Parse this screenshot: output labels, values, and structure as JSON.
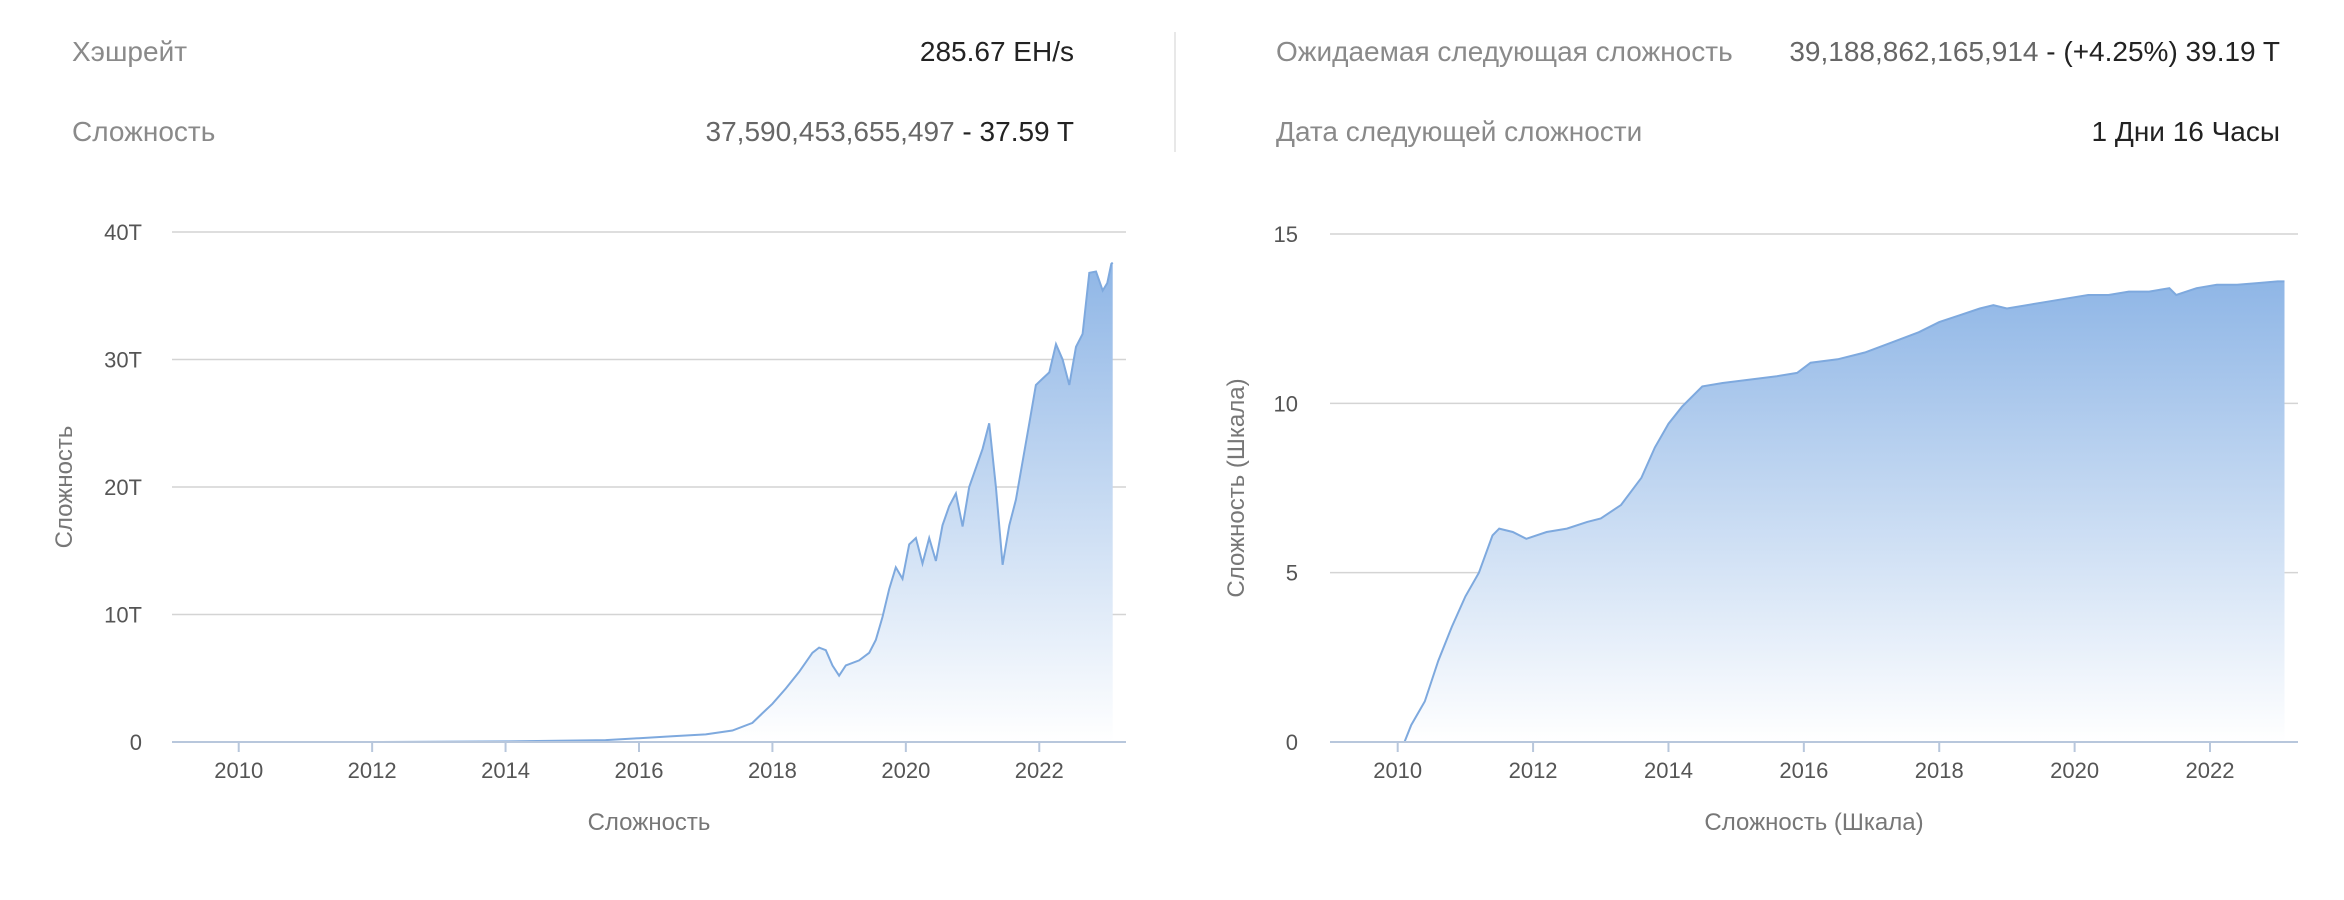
{
  "stats": {
    "hashrate_label": "Хэшрейт",
    "hashrate_value": "285.67 EH/s",
    "difficulty_label": "Сложность",
    "difficulty_full": "37,590,453,655,497",
    "difficulty_sep": " - ",
    "difficulty_short": "37.59 T",
    "next_label": "Ожидаемая следующая сложность",
    "next_full": "39,188,862,165,914",
    "next_rest": " - (+4.25%) 39.19 T",
    "next_date_label": "Дата следующей сложности",
    "next_date_value": "1 Дни 16 Часы"
  },
  "colors": {
    "fill_top": "#8fb6e6",
    "fill_bottom": "#ffffff",
    "line": "#7ea9de",
    "grid": "#d4d4d4"
  },
  "chart_data": [
    {
      "type": "area",
      "xlabel": "",
      "ylabel": "Сложность",
      "axis_caption": "Сложность",
      "xlim": [
        2009.0,
        2023.3
      ],
      "ylim": [
        0,
        40
      ],
      "y_unit": "T",
      "y_ticks": [
        "0",
        "10T",
        "20T",
        "30T",
        "40T"
      ],
      "y_tick_values": [
        0,
        10,
        20,
        30,
        40
      ],
      "x_ticks": [
        "2010",
        "2012",
        "2014",
        "2016",
        "2018",
        "2020",
        "2022"
      ],
      "x_tick_values": [
        2010,
        2012,
        2014,
        2016,
        2018,
        2020,
        2022
      ],
      "grid": true,
      "x": [
        2009.0,
        2012.0,
        2014.0,
        2015.5,
        2016.0,
        2016.5,
        2017.0,
        2017.4,
        2017.7,
        2017.9,
        2018.0,
        2018.2,
        2018.4,
        2018.6,
        2018.7,
        2018.8,
        2018.9,
        2019.0,
        2019.1,
        2019.3,
        2019.45,
        2019.55,
        2019.65,
        2019.75,
        2019.85,
        2019.95,
        2020.05,
        2020.15,
        2020.25,
        2020.35,
        2020.45,
        2020.55,
        2020.65,
        2020.75,
        2020.85,
        2020.95,
        2021.05,
        2021.15,
        2021.25,
        2021.35,
        2021.45,
        2021.55,
        2021.65,
        2021.75,
        2021.85,
        2021.95,
        2022.05,
        2022.15,
        2022.25,
        2022.35,
        2022.45,
        2022.55,
        2022.65,
        2022.75,
        2022.85,
        2022.95,
        2023.02,
        2023.08,
        2023.1
      ],
      "y": [
        0,
        0,
        0.05,
        0.15,
        0.3,
        0.45,
        0.6,
        0.9,
        1.5,
        2.5,
        3.0,
        4.2,
        5.5,
        7.0,
        7.4,
        7.2,
        6.0,
        5.2,
        6.0,
        6.4,
        7.0,
        8.0,
        9.8,
        12.0,
        13.7,
        12.8,
        15.5,
        16.0,
        14.0,
        16.0,
        14.2,
        17.0,
        18.5,
        19.5,
        16.9,
        20.0,
        21.5,
        23.0,
        25.0,
        20.0,
        13.9,
        17.0,
        19.0,
        22.0,
        25.0,
        28.0,
        28.5,
        29.0,
        31.2,
        30.0,
        28.0,
        31.0,
        32.0,
        36.8,
        36.9,
        35.4,
        36.0,
        37.5,
        37.6
      ]
    },
    {
      "type": "area",
      "xlabel": "",
      "ylabel": "Сложность (Шкала)",
      "axis_caption": "Сложность (Шкала)",
      "xlim": [
        2009.0,
        2023.3
      ],
      "ylim": [
        0,
        15
      ],
      "y_ticks": [
        "0",
        "5",
        "10",
        "15"
      ],
      "y_tick_values": [
        0,
        5,
        10,
        15
      ],
      "x_ticks": [
        "2010",
        "2012",
        "2014",
        "2016",
        "2018",
        "2020",
        "2022"
      ],
      "x_tick_values": [
        2010,
        2012,
        2014,
        2016,
        2018,
        2020,
        2022
      ],
      "grid": true,
      "x": [
        2009.0,
        2010.1,
        2010.2,
        2010.4,
        2010.6,
        2010.8,
        2011.0,
        2011.2,
        2011.4,
        2011.5,
        2011.7,
        2011.9,
        2012.2,
        2012.5,
        2012.8,
        2013.0,
        2013.3,
        2013.6,
        2013.8,
        2014.0,
        2014.2,
        2014.5,
        2014.8,
        2015.2,
        2015.6,
        2015.9,
        2016.1,
        2016.5,
        2016.9,
        2017.3,
        2017.7,
        2018.0,
        2018.3,
        2018.6,
        2018.8,
        2019.0,
        2019.3,
        2019.6,
        2019.9,
        2020.2,
        2020.5,
        2020.8,
        2021.1,
        2021.4,
        2021.5,
        2021.8,
        2022.1,
        2022.4,
        2022.7,
        2023.0,
        2023.1
      ],
      "y": [
        0,
        0,
        0.5,
        1.2,
        2.4,
        3.4,
        4.3,
        5.0,
        6.1,
        6.3,
        6.2,
        6.0,
        6.2,
        6.3,
        6.5,
        6.6,
        7.0,
        7.8,
        8.7,
        9.4,
        9.9,
        10.5,
        10.6,
        10.7,
        10.8,
        10.9,
        11.2,
        11.3,
        11.5,
        11.8,
        12.1,
        12.4,
        12.6,
        12.8,
        12.9,
        12.8,
        12.9,
        13.0,
        13.1,
        13.2,
        13.2,
        13.3,
        13.3,
        13.4,
        13.2,
        13.4,
        13.5,
        13.5,
        13.55,
        13.6,
        13.6
      ]
    }
  ]
}
